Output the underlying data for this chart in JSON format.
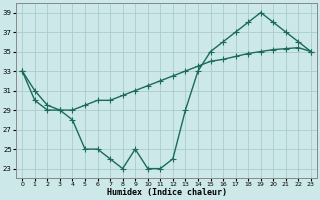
{
  "xlabel": "Humidex (Indice chaleur)",
  "xlim": [
    -0.5,
    23.5
  ],
  "ylim": [
    22,
    40
  ],
  "xticks": [
    0,
    1,
    2,
    3,
    4,
    5,
    6,
    7,
    8,
    9,
    10,
    11,
    12,
    13,
    14,
    15,
    16,
    17,
    18,
    19,
    20,
    21,
    22,
    23
  ],
  "yticks": [
    23,
    25,
    27,
    29,
    31,
    33,
    35,
    37,
    39
  ],
  "background_color": "#cde8e8",
  "grid_color": "#a8cccc",
  "line_color": "#1a6b5a",
  "line1_x": [
    0,
    1,
    2,
    3,
    4,
    5,
    6,
    7,
    8,
    9,
    10,
    11,
    12,
    13,
    14,
    15,
    16,
    17,
    18,
    19,
    20,
    21,
    22,
    23
  ],
  "line1_y": [
    33,
    30,
    29,
    29,
    28,
    25,
    25,
    24,
    23,
    25,
    23,
    23,
    24,
    29,
    33,
    35,
    36,
    37,
    38,
    39,
    38,
    37,
    36,
    35
  ],
  "line2_x": [
    0,
    1,
    2,
    3,
    4,
    5,
    6,
    7,
    8,
    9,
    10,
    11,
    12,
    13,
    14,
    15,
    16,
    17,
    18,
    19,
    20,
    21,
    22,
    23
  ],
  "line2_y": [
    33,
    31,
    29.5,
    29,
    29,
    29.5,
    30,
    30,
    30.5,
    31,
    31.5,
    32,
    32.5,
    33,
    33.5,
    34,
    34.2,
    34.5,
    34.8,
    35,
    35.2,
    35.3,
    35.4,
    35
  ],
  "line_width": 1.0,
  "marker": "+",
  "marker_size": 4
}
